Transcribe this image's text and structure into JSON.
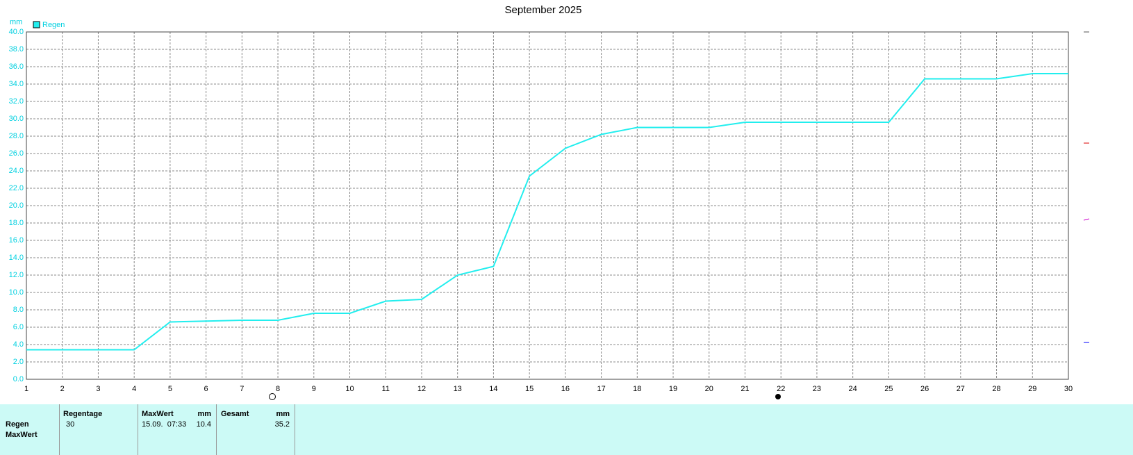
{
  "chart_data": {
    "type": "line",
    "title": "September 2025",
    "y_label": "mm",
    "x": [
      1,
      2,
      3,
      4,
      5,
      6,
      7,
      8,
      9,
      10,
      11,
      12,
      13,
      14,
      15,
      16,
      17,
      18,
      19,
      20,
      21,
      22,
      23,
      24,
      25,
      26,
      27,
      28,
      29,
      30
    ],
    "xlim": [
      1,
      30
    ],
    "xticks": [
      1,
      2,
      3,
      4,
      5,
      6,
      7,
      8,
      9,
      10,
      11,
      12,
      13,
      14,
      15,
      16,
      17,
      18,
      19,
      20,
      21,
      22,
      23,
      24,
      25,
      26,
      27,
      28,
      29,
      30
    ],
    "ylim": [
      0,
      40
    ],
    "yticks": [
      {
        "value": 0,
        "label": "0.0"
      },
      {
        "value": 2,
        "label": "2.0"
      },
      {
        "value": 4,
        "label": "4.0"
      },
      {
        "value": 6,
        "label": "6.0"
      },
      {
        "value": 8,
        "label": "8.0"
      },
      {
        "value": 10,
        "label": "10.0"
      },
      {
        "value": 12,
        "label": "12.0"
      },
      {
        "value": 14,
        "label": "14.0"
      },
      {
        "value": 16,
        "label": "16.0"
      },
      {
        "value": 18,
        "label": "18.0"
      },
      {
        "value": 20,
        "label": "20.0"
      },
      {
        "value": 22,
        "label": "22.0"
      },
      {
        "value": 24,
        "label": "24.0"
      },
      {
        "value": 26,
        "label": "26.0"
      },
      {
        "value": 28,
        "label": "28.0"
      },
      {
        "value": 30,
        "label": "30.0"
      },
      {
        "value": 32,
        "label": "32.0"
      },
      {
        "value": 34,
        "label": "34.0"
      },
      {
        "value": 36,
        "label": "36.0"
      },
      {
        "value": 38,
        "label": "38.0"
      },
      {
        "value": 40,
        "label": "40.0"
      }
    ],
    "grid": true,
    "series": [
      {
        "name": "Regen",
        "color": "#22eeee",
        "values": [
          3.4,
          3.4,
          3.4,
          3.4,
          6.6,
          6.7,
          6.8,
          6.8,
          7.6,
          7.6,
          9.0,
          9.2,
          12.0,
          13.0,
          23.4,
          26.6,
          28.2,
          29.0,
          29.0,
          29.0,
          29.6,
          29.6,
          29.6,
          29.6,
          29.6,
          34.6,
          34.6,
          34.6,
          35.2,
          35.2
        ]
      }
    ]
  },
  "summary_table": {
    "headers": [
      "Regentage",
      "MaxWert",
      "mm",
      "Gesamt",
      "mm"
    ],
    "rows": [
      {
        "label": "Regen",
        "cells": [
          "30",
          "15.09.  07:33",
          "10.4",
          "35.2"
        ]
      },
      {
        "label": "MaxWert"
      }
    ]
  }
}
